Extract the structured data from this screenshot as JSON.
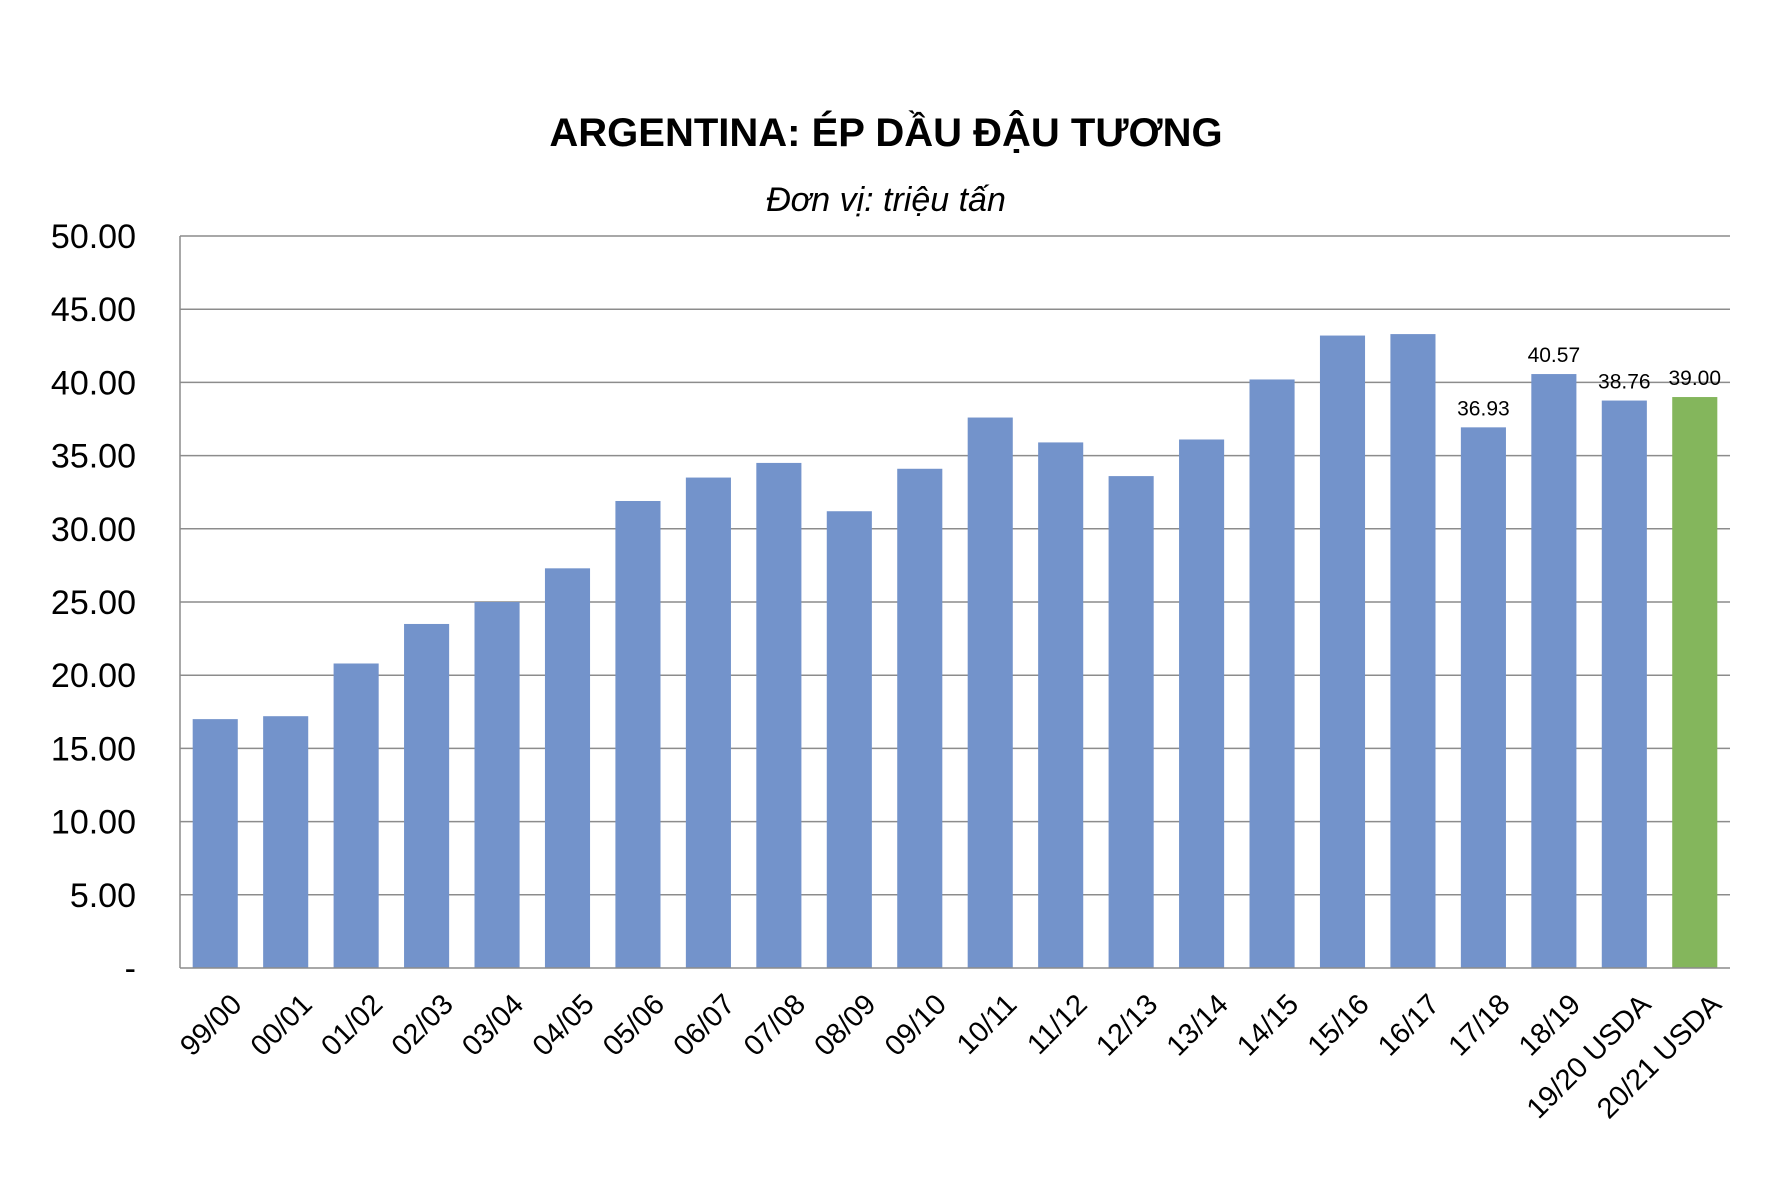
{
  "chart_data": {
    "type": "bar",
    "title": "ARGENTINA: ÉP DẦU ĐẬU TƯƠNG",
    "subtitle": "Đơn vị: triệu tấn",
    "xlabel": "",
    "ylabel": "",
    "ylim": [
      0,
      50
    ],
    "yticks": [
      "-",
      "5.00",
      "10.00",
      "15.00",
      "20.00",
      "25.00",
      "30.00",
      "35.00",
      "40.00",
      "45.00",
      "50.00"
    ],
    "grid": true,
    "legend": "none",
    "categories": [
      "99/00",
      "00/01",
      "01/02",
      "02/03",
      "03/04",
      "04/05",
      "05/06",
      "06/07",
      "07/08",
      "08/09",
      "09/10",
      "10/11",
      "11/12",
      "12/13",
      "13/14",
      "14/15",
      "15/16",
      "16/17",
      "17/18",
      "18/19",
      "19/20 USDA",
      "20/21 USDA"
    ],
    "values": [
      17.0,
      17.2,
      20.8,
      23.5,
      25.0,
      27.3,
      31.9,
      33.5,
      34.5,
      31.2,
      34.1,
      37.6,
      35.9,
      33.6,
      36.1,
      40.2,
      43.2,
      43.3,
      36.93,
      40.57,
      38.76,
      39.0
    ],
    "data_labels": [
      "",
      "",
      "",
      "",
      "",
      "",
      "",
      "",
      "",
      "",
      "",
      "",
      "",
      "",
      "",
      "",
      "",
      "",
      "36.93",
      "40.57",
      "38.76",
      "39.00"
    ],
    "bar_colors": [
      "#7393cb",
      "#7393cb",
      "#7393cb",
      "#7393cb",
      "#7393cb",
      "#7393cb",
      "#7393cb",
      "#7393cb",
      "#7393cb",
      "#7393cb",
      "#7393cb",
      "#7393cb",
      "#7393cb",
      "#7393cb",
      "#7393cb",
      "#7393cb",
      "#7393cb",
      "#7393cb",
      "#7393cb",
      "#7393cb",
      "#7393cb",
      "#84b65c"
    ]
  }
}
